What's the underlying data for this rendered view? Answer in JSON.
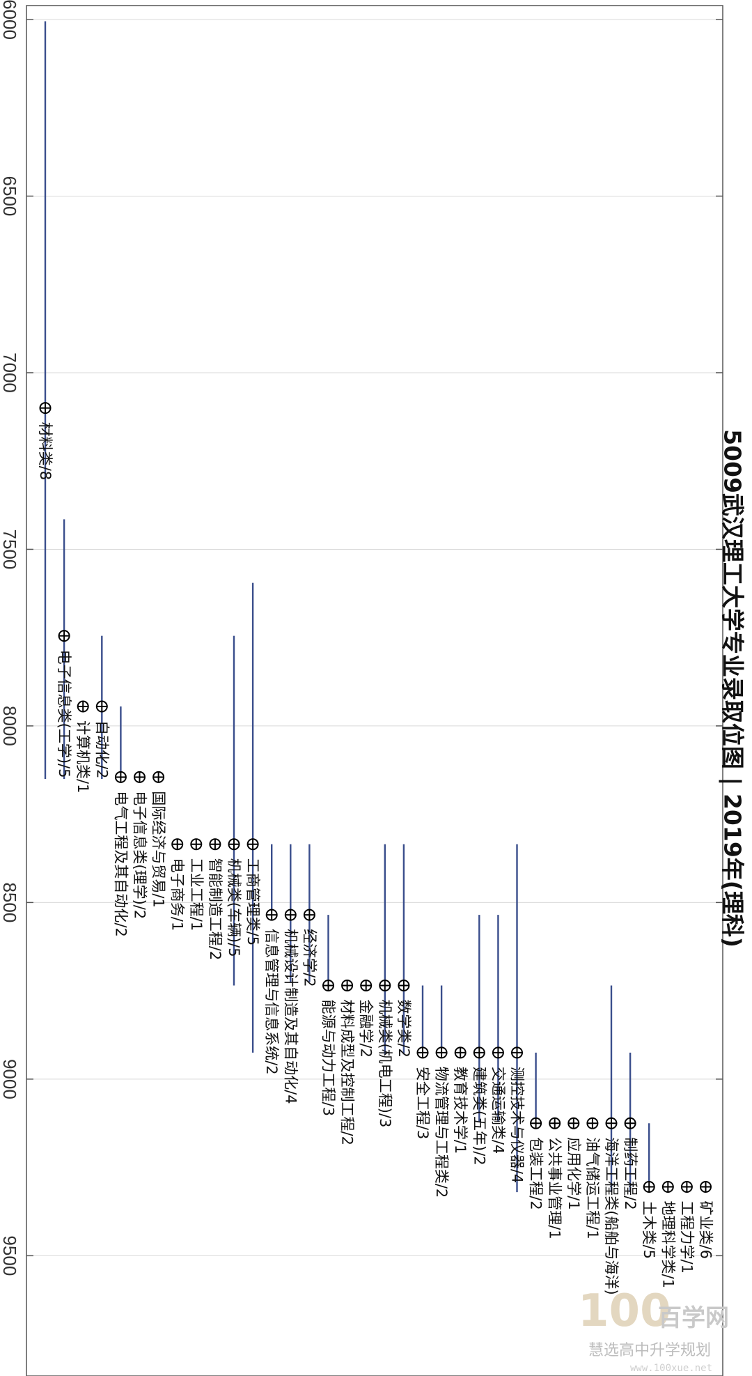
{
  "chart_data": {
    "type": "scatter",
    "title": "5009武汉理工大学专业录取位图 | 2019年(理科)",
    "ylabel": "",
    "xlabel": "",
    "ylim": [
      6000,
      9880
    ],
    "yticks": [
      6000,
      6500,
      7000,
      7500,
      8000,
      8500,
      9000,
      9500
    ],
    "grid": true,
    "colors": {
      "range_line": "#3a4e8c",
      "marker": "#000000",
      "grid": "#d9d9d9",
      "frame": "#555555"
    },
    "majors": [
      {
        "label": "材料类/8",
        "rank": 7100,
        "low": 6005,
        "high": 8150
      },
      {
        "label": "电子信息类(工学)/5",
        "rank": 7745,
        "low": 7415,
        "high": 8150
      },
      {
        "label": "计算机类/1",
        "rank": 7945,
        "low": null,
        "high": null
      },
      {
        "label": "自动化/2",
        "rank": 7945,
        "low": 7745,
        "high": 8150
      },
      {
        "label": "电气工程及其自动化/2",
        "rank": 8145,
        "low": 7945,
        "high": 8150
      },
      {
        "label": "电子信息类(理学)/2",
        "rank": 8145,
        "low": null,
        "high": null
      },
      {
        "label": "国际经济与贸易/1",
        "rank": 8145,
        "low": null,
        "high": null
      },
      {
        "label": "电子商务/1",
        "rank": 8335,
        "low": null,
        "high": null
      },
      {
        "label": "工业工程/1",
        "rank": 8335,
        "low": null,
        "high": null
      },
      {
        "label": "智能制造工程/2",
        "rank": 8335,
        "low": null,
        "high": null
      },
      {
        "label": "机械类(车辆)/5",
        "rank": 8335,
        "low": 7745,
        "high": 8735
      },
      {
        "label": "工商管理类/5",
        "rank": 8335,
        "low": 7595,
        "high": 8925
      },
      {
        "label": "信息管理与信息系统/2",
        "rank": 8535,
        "low": 8335,
        "high": null
      },
      {
        "label": "机械设计制造及其自动化/4",
        "rank": 8535,
        "low": 8335,
        "high": 8725
      },
      {
        "label": "经济学/2",
        "rank": 8535,
        "low": 8335,
        "high": 8725
      },
      {
        "label": "能源与动力工程/3",
        "rank": 8735,
        "low": 8535,
        "high": null
      },
      {
        "label": "材料成型及控制工程/2",
        "rank": 8735,
        "low": null,
        "high": null
      },
      {
        "label": "金融学/2",
        "rank": 8735,
        "low": null,
        "high": null
      },
      {
        "label": "机械类(机电工程)/3",
        "rank": 8735,
        "low": 8335,
        "high": 8930
      },
      {
        "label": "数学类/2",
        "rank": 8735,
        "low": 8335,
        "high": 8930
      },
      {
        "label": "安全工程/3",
        "rank": 8925,
        "low": 8735,
        "high": null
      },
      {
        "label": "物流管理与工程类/2",
        "rank": 8925,
        "low": 8735,
        "high": null
      },
      {
        "label": "教育技术学/1",
        "rank": 8925,
        "low": null,
        "high": null
      },
      {
        "label": "建筑类(五年)/2",
        "rank": 8925,
        "low": 8535,
        "high": 9120
      },
      {
        "label": "交通运输类/4",
        "rank": 8925,
        "low": 8535,
        "high": 9120
      },
      {
        "label": "测控技术与仪器/4",
        "rank": 8925,
        "low": 8335,
        "high": 9320
      },
      {
        "label": "包装工程/2",
        "rank": 9125,
        "low": 8925,
        "high": null
      },
      {
        "label": "公共事业管理/1",
        "rank": 9125,
        "low": null,
        "high": null
      },
      {
        "label": "应用化学/1",
        "rank": 9125,
        "low": null,
        "high": null
      },
      {
        "label": "油气储运工程/1",
        "rank": 9125,
        "low": null,
        "high": null
      },
      {
        "label": "海洋工程类(船舶与海洋)",
        "rank": 9125,
        "low": 8735,
        "high": 9320
      },
      {
        "label": "制药工程/2",
        "rank": 9125,
        "low": 8925,
        "high": 9320
      },
      {
        "label": "土木类/5",
        "rank": 9305,
        "low": 9125,
        "high": null
      },
      {
        "label": "地理科学类/1",
        "rank": 9305,
        "low": null,
        "high": null
      },
      {
        "label": "工程力学/1",
        "rank": 9305,
        "low": null,
        "high": null
      },
      {
        "label": "矿业类/6",
        "rank": 9305,
        "low": null,
        "high": null
      }
    ]
  },
  "watermark": {
    "logo_text": "100",
    "brand": "百学网",
    "subtitle": "慧选高中升学规划",
    "url": "www.100xue.net"
  }
}
